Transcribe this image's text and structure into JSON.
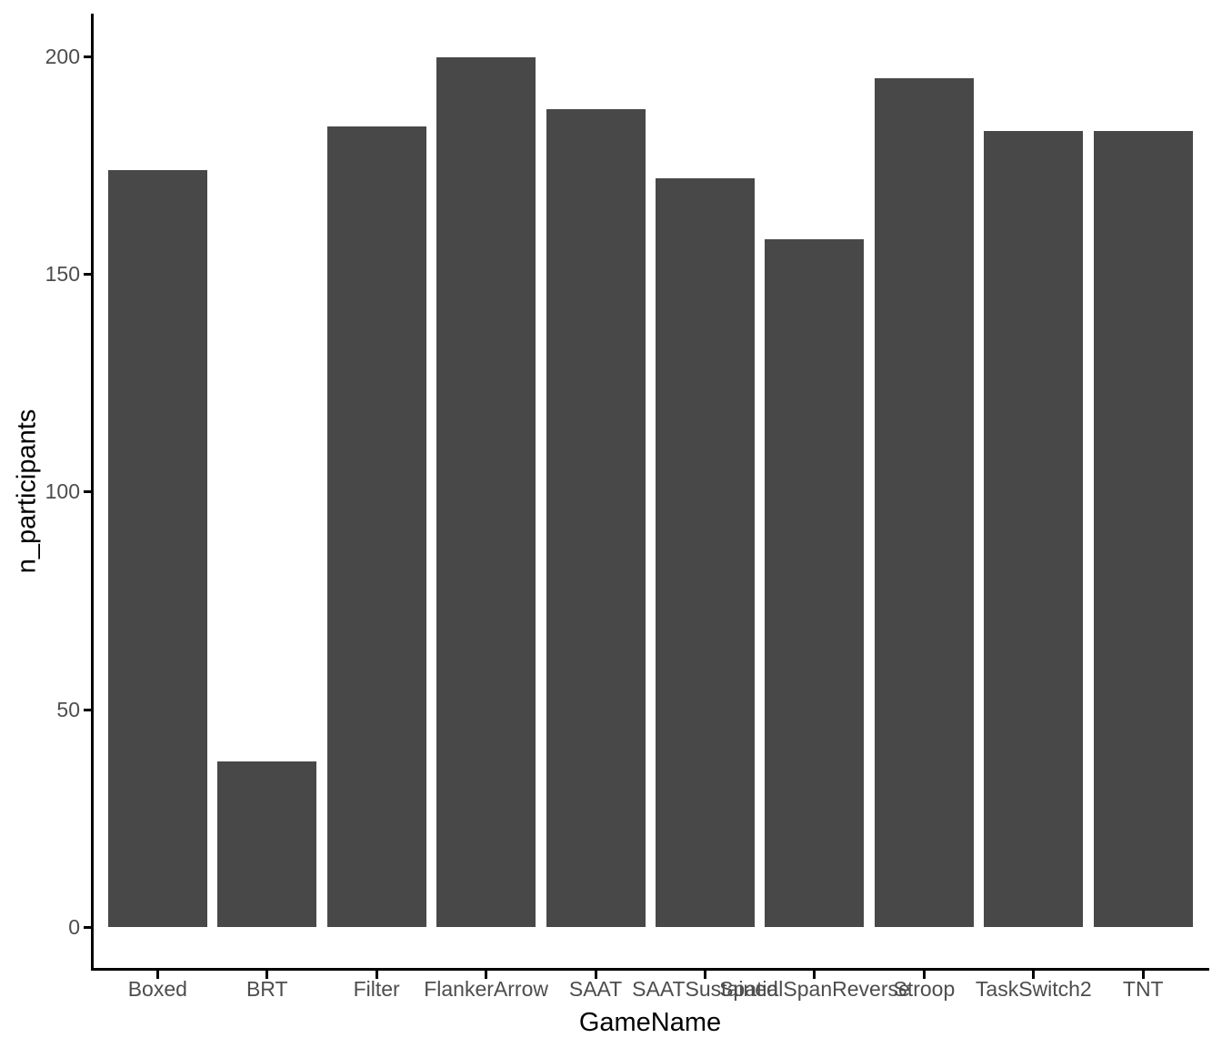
{
  "chart_data": {
    "type": "bar",
    "categories": [
      "Boxed",
      "BRT",
      "Filter",
      "FlankerArrow",
      "SAAT",
      "SAATSustained",
      "SpatialSpanReverse",
      "Stroop",
      "TaskSwitch2",
      "TNT"
    ],
    "values": [
      174,
      38,
      184,
      200,
      188,
      172,
      158,
      195,
      183,
      183
    ],
    "title": "",
    "xlabel": "GameName",
    "ylabel": "n_participants",
    "ylim": [
      0,
      200
    ],
    "yticks": [
      0,
      50,
      100,
      150,
      200
    ],
    "legend": null,
    "grid": false,
    "bar_color": "#484848",
    "axis_line_color": "#000000",
    "axis_text_color": "#4d4d4d",
    "axis_title_color": "#000000"
  }
}
